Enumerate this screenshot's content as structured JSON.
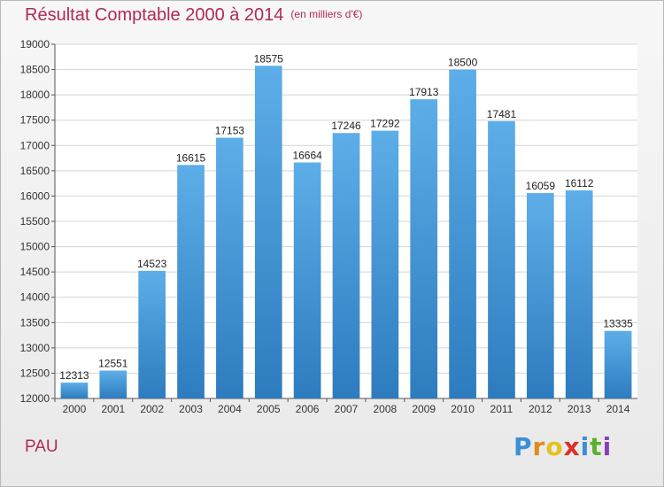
{
  "header": {
    "title": "Résultat Comptable 2000 à 2014",
    "subtitle": "(en milliers d'€)"
  },
  "place": "PAU",
  "logo": {
    "text": "Proxiti",
    "letters": [
      "P",
      "r",
      "o",
      "x",
      "i",
      "t",
      "i"
    ],
    "colors": [
      "#3a8fd6",
      "#e08a1e",
      "#e2c21f",
      "#d8302a",
      "#3a8fd6",
      "#5cb030",
      "#8a3fb8"
    ]
  },
  "colors": {
    "bar_top": "#5daee8",
    "bar_bottom": "#2d7cbf",
    "title": "#b0295a",
    "grid": "#d4d4d4"
  },
  "chart_data": {
    "type": "bar",
    "title": "Résultat Comptable 2000 à 2014",
    "xlabel": "",
    "ylabel": "",
    "ylim": [
      12000,
      19000
    ],
    "ytick_step": 500,
    "grid": true,
    "categories": [
      "2000",
      "2001",
      "2002",
      "2003",
      "2004",
      "2005",
      "2006",
      "2007",
      "2008",
      "2009",
      "2010",
      "2011",
      "2012",
      "2013",
      "2014"
    ],
    "values": [
      12313,
      12551,
      14523,
      16615,
      17153,
      18575,
      16664,
      17246,
      17292,
      17913,
      18500,
      17481,
      16059,
      16112,
      13335
    ]
  }
}
